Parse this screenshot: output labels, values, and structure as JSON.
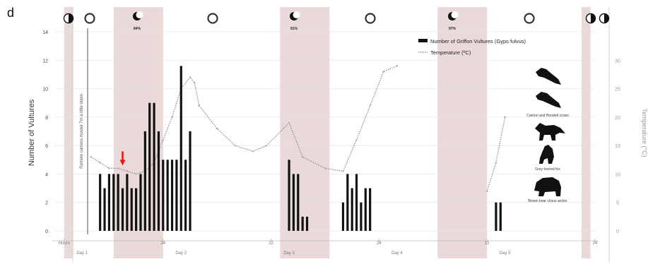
{
  "panel_label": "d",
  "moon_markers": [
    {
      "icon": "half-moon-icon",
      "label": ""
    },
    {
      "icon": "full-moon-icon",
      "label": ""
    },
    {
      "icon": "crescent-moon-icon",
      "label": "84%"
    },
    {
      "icon": "full-moon-icon",
      "label": ""
    },
    {
      "icon": "crescent-moon-icon",
      "label": "91%"
    },
    {
      "icon": "full-moon-icon",
      "label": ""
    },
    {
      "icon": "crescent-moon-icon",
      "label": "97%"
    },
    {
      "icon": "full-moon-icon",
      "label": ""
    },
    {
      "icon": "half-moon-icon",
      "label": ""
    },
    {
      "icon": "half-moon-icon",
      "label": ""
    }
  ],
  "carcass_note": "Remote camera moved 7m a little down",
  "species_labels": [
    "Carrion and Hooded crows",
    "Grey fox/red fox",
    "Brown bear Ursus arctos"
  ],
  "chart_data": {
    "type": "bar+line",
    "ylabel": "Number of Vultures",
    "y2label": "Temperature (°C)",
    "ylim": [
      0,
      14
    ],
    "yticks": [
      0,
      2,
      4,
      6,
      8,
      10,
      12,
      14
    ],
    "y2lim": [
      0,
      35
    ],
    "y2ticks": [
      0,
      5,
      10,
      15,
      20,
      25,
      30
    ],
    "xlim": [
      0,
      120
    ],
    "xticks": [
      {
        "x": 2,
        "label": "Hours"
      },
      {
        "x": 24,
        "label": "24"
      },
      {
        "x": 48,
        "label": "12"
      },
      {
        "x": 72,
        "label": "24"
      },
      {
        "x": 96,
        "label": "12"
      },
      {
        "x": 120,
        "label": "24"
      }
    ],
    "day_labels": [
      {
        "x": 6,
        "label": "Day 1"
      },
      {
        "x": 28,
        "label": "Day 2"
      },
      {
        "x": 52,
        "label": "Day 3"
      },
      {
        "x": 76,
        "label": "Day 4"
      },
      {
        "x": 100,
        "label": "Day 5"
      }
    ],
    "night_bands": [
      [
        2,
        4
      ],
      [
        13,
        24
      ],
      [
        50,
        61
      ],
      [
        85,
        96
      ],
      [
        117,
        119
      ]
    ],
    "legend": [
      {
        "name": "Number of Griffon Vultures (Gyps fulvus)",
        "style": "bar"
      },
      {
        "name": "Temperature (ºC)",
        "style": "dotted-line"
      }
    ],
    "series": [
      {
        "name": "Number of Griffon Vultures (Gyps fulvus)",
        "color": "#111111",
        "points": [
          [
            10,
            4
          ],
          [
            11,
            3
          ],
          [
            12,
            4
          ],
          [
            13,
            4
          ],
          [
            14,
            4
          ],
          [
            15,
            3
          ],
          [
            16,
            4
          ],
          [
            17,
            3
          ],
          [
            18,
            3
          ],
          [
            19,
            4
          ],
          [
            20,
            7
          ],
          [
            21,
            9
          ],
          [
            22,
            9
          ],
          [
            23,
            7
          ],
          [
            24,
            5
          ],
          [
            25,
            5
          ],
          [
            26,
            5
          ],
          [
            27,
            5
          ],
          [
            28,
            11.6
          ],
          [
            29,
            5
          ],
          [
            30,
            7
          ],
          [
            52,
            5
          ],
          [
            53,
            4
          ],
          [
            54,
            4
          ],
          [
            55,
            1
          ],
          [
            56,
            1
          ],
          [
            64,
            2
          ],
          [
            65,
            4
          ],
          [
            66,
            3
          ],
          [
            67,
            4
          ],
          [
            68,
            2
          ],
          [
            69,
            3
          ],
          [
            70,
            3
          ],
          [
            98,
            2
          ],
          [
            99,
            2
          ]
        ]
      },
      {
        "name": "Temperature (ºC)",
        "color": "#888888",
        "points": [
          [
            8,
            13
          ],
          [
            10,
            12
          ],
          [
            12,
            11
          ],
          [
            14,
            11
          ],
          [
            16,
            10.5
          ],
          [
            18,
            10
          ],
          [
            20,
            10.5
          ],
          [
            22,
            12
          ],
          [
            24,
            16
          ],
          [
            26,
            20
          ],
          [
            28,
            25
          ],
          [
            30,
            27
          ],
          [
            31,
            26
          ],
          [
            32,
            22
          ],
          [
            36,
            18
          ],
          [
            40,
            15
          ],
          [
            44,
            14
          ],
          [
            47,
            15
          ],
          [
            52,
            19
          ],
          [
            55,
            13
          ],
          [
            60,
            11
          ],
          [
            64,
            10.5
          ],
          [
            67,
            16
          ],
          [
            70,
            22
          ],
          [
            73,
            28
          ],
          [
            76,
            29
          ],
          [
            96,
            7
          ],
          [
            98,
            12
          ],
          [
            100,
            20
          ]
        ]
      }
    ],
    "annotations": [
      {
        "type": "red-arrow",
        "x": 15,
        "y": 4.2
      }
    ]
  }
}
